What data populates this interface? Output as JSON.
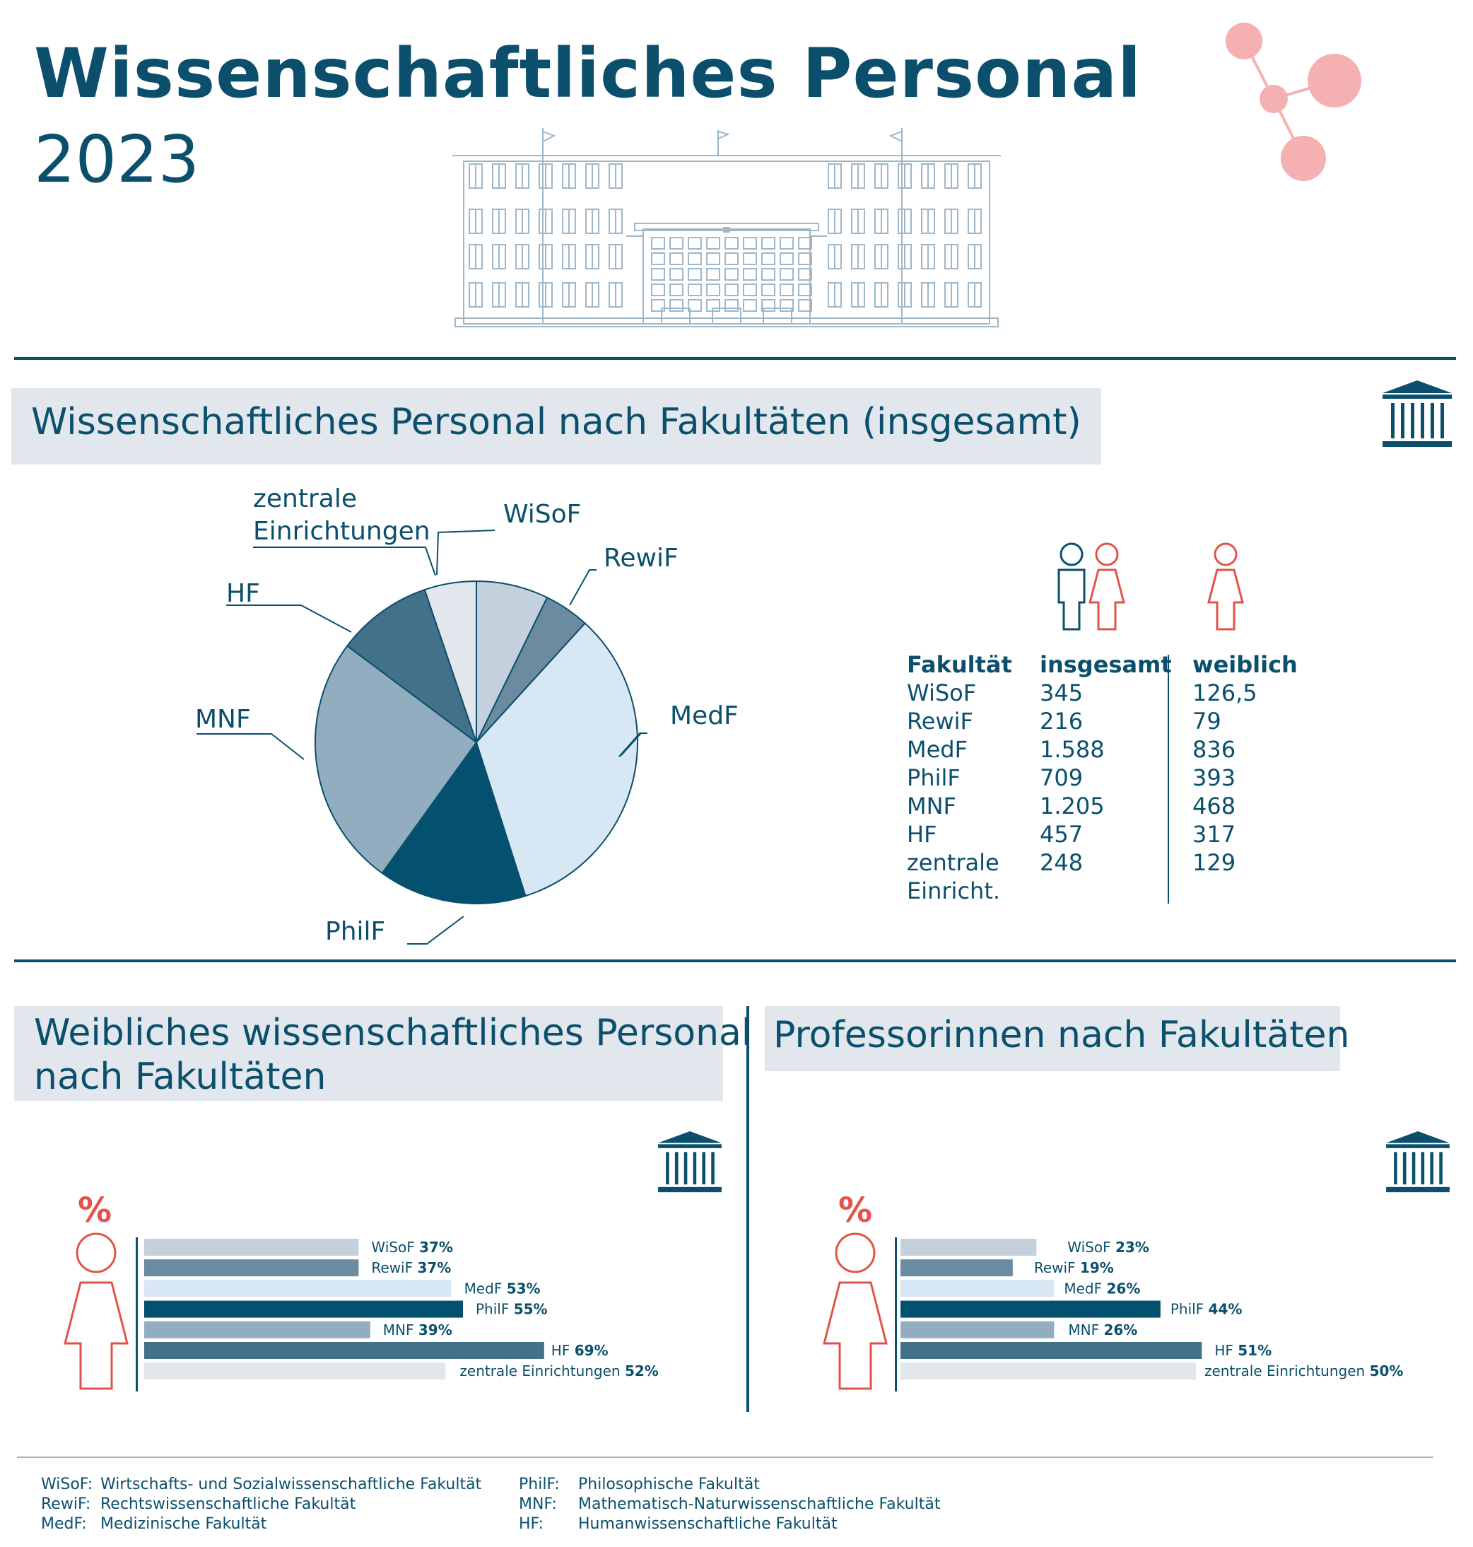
{
  "header": {
    "title": "Wissenschaftliches Personal",
    "year": "2023"
  },
  "colors": {
    "navy": "#0b4f6c",
    "accent": "#e2534b",
    "pink": "#f5b1b1",
    "c1": "#c4d0db",
    "c2": "#6a8ba0",
    "c3": "#d8e7f4",
    "c4": "#03506f",
    "c5": "#93adc0",
    "c6": "#43718a",
    "c7": "#e1e7ec"
  },
  "section1": {
    "title": "Wissenschaftliches Personal nach Fakultäten (insgesamt)",
    "pie_labels": {
      "wisof": "WiSoF",
      "rewif": "RewiF",
      "medf": "MedF",
      "philf": "PhilF",
      "mnf": "MNF",
      "hf": "HF",
      "ze_line1": "zentrale",
      "ze_line2": "Einrichtungen"
    },
    "table": {
      "headers": [
        "Fakultät",
        "insgesamt",
        "weiblich"
      ],
      "rows": [
        [
          "WiSoF",
          "345",
          "126,5"
        ],
        [
          "RewiF",
          "216",
          "79"
        ],
        [
          "MedF",
          "1.588",
          "836"
        ],
        [
          "PhilF",
          "709",
          "393"
        ],
        [
          "MNF",
          "1.205",
          "468"
        ],
        [
          "HF",
          "457",
          "317"
        ],
        [
          "zentrale",
          "248",
          "129"
        ],
        [
          "Einricht.",
          "",
          ""
        ]
      ]
    }
  },
  "section2": {
    "title_line1": "Weibliches wissenschaftliches Personal",
    "title_line2": "nach Fakultäten",
    "pct_symbol": "%"
  },
  "section3": {
    "title": "Professorinnen nach Fakultäten",
    "pct_symbol": "%"
  },
  "chart_data": [
    {
      "type": "pie",
      "title": "Wissenschaftliches Personal nach Fakultäten (insgesamt)",
      "categories": [
        "WiSoF",
        "RewiF",
        "MedF",
        "PhilF",
        "MNF",
        "HF",
        "zentrale Einrichtungen"
      ],
      "values": [
        345,
        216,
        1588,
        709,
        1205,
        457,
        248
      ]
    },
    {
      "type": "bar",
      "title": "Weibliches wissenschaftliches Personal nach Fakultäten",
      "categories": [
        "WiSoF",
        "RewiF",
        "MedF",
        "PhilF",
        "MNF",
        "HF",
        "zentrale Einrichtungen"
      ],
      "values": [
        37,
        37,
        53,
        55,
        39,
        69,
        52
      ],
      "value_labels": [
        "37%",
        "37%",
        "53%",
        "55%",
        "39%",
        "69%",
        "52%"
      ]
    },
    {
      "type": "bar",
      "title": "Professorinnen nach Fakultäten",
      "categories": [
        "WiSoF",
        "RewiF",
        "MedF",
        "PhilF",
        "MNF",
        "HF",
        "zentrale Einrichtungen"
      ],
      "values": [
        23,
        19,
        26,
        44,
        26,
        51,
        50
      ],
      "value_labels": [
        "23%",
        "19%",
        "26%",
        "44%",
        "26%",
        "51%",
        "50%"
      ]
    }
  ],
  "footer": {
    "left": [
      [
        "WiSoF:",
        "Wirtschafts- und Sozialwissenschaftliche Fakultät"
      ],
      [
        "RewiF:",
        "Rechtswissenschaftliche Fakultät"
      ],
      [
        "MedF:",
        "Medizinische Fakultät"
      ]
    ],
    "right": [
      [
        "PhilF:",
        "Philosophische Fakultät"
      ],
      [
        "MNF:",
        "Mathematisch-Naturwissenschaftliche Fakultät"
      ],
      [
        "HF:",
        "Humanwissenschaftliche Fakultät"
      ]
    ]
  }
}
